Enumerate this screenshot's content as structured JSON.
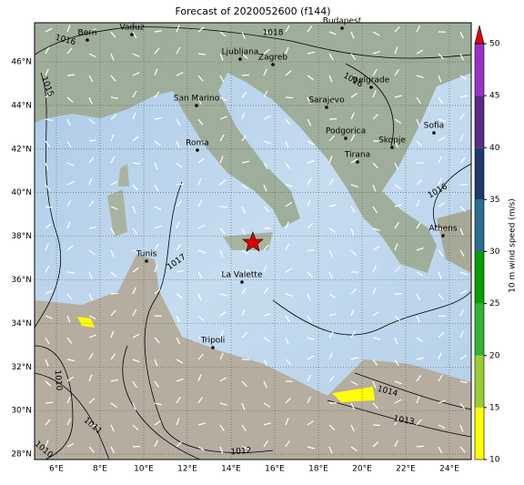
{
  "title": "Forecast of 2020052600 (f144)",
  "lonlim": [
    5,
    25
  ],
  "latlim": [
    27.75,
    47.8
  ],
  "lon_ticks": [
    {
      "value": 6,
      "label": "6°E"
    },
    {
      "value": 8,
      "label": "8°E"
    },
    {
      "value": 10,
      "label": "10°E"
    },
    {
      "value": 12,
      "label": "12°E"
    },
    {
      "value": 14,
      "label": "14°E"
    },
    {
      "value": 16,
      "label": "16°E"
    },
    {
      "value": 18,
      "label": "18°E"
    },
    {
      "value": 20,
      "label": "20°E"
    },
    {
      "value": 22,
      "label": "22°E"
    },
    {
      "value": 24,
      "label": "24°E"
    }
  ],
  "lat_ticks": [
    {
      "value": 28,
      "label": "28°N"
    },
    {
      "value": 30,
      "label": "30°N"
    },
    {
      "value": 32,
      "label": "32°N"
    },
    {
      "value": 34,
      "label": "34°N"
    },
    {
      "value": 36,
      "label": "36°N"
    },
    {
      "value": 38,
      "label": "38°N"
    },
    {
      "value": 40,
      "label": "40°N"
    },
    {
      "value": 42,
      "label": "42°N"
    },
    {
      "value": 44,
      "label": "44°N"
    },
    {
      "value": 46,
      "label": "46°N"
    }
  ],
  "cities": [
    "Bern",
    "Vaduz",
    "Budapest",
    "Ljubljana",
    "Zagreb",
    "San Marino",
    "Sarajevo",
    "Belgrade",
    "Roma",
    "Podgorica",
    "Skopje",
    "Sofia",
    "Tirana",
    "Athens",
    "Tunis",
    "La Valette",
    "Tripoli"
  ],
  "isobar_labels": [
    "1016",
    "1018",
    "1015",
    "1016",
    "1016",
    "1017",
    "1014",
    "1013",
    "1010",
    "1011",
    "1012",
    "1010"
  ],
  "colorbar": {
    "label": "10 m wind speed (m/s)",
    "ticks": [
      10,
      15,
      20,
      25,
      30,
      35,
      40,
      45,
      50
    ],
    "colors": [
      "#ffff00",
      "#9acd32",
      "#32b432",
      "#00a000",
      "#2e6e8e",
      "#1e3a6e",
      "#5a2a8a",
      "#9a32c8"
    ],
    "extend_color": "#e00000"
  }
}
